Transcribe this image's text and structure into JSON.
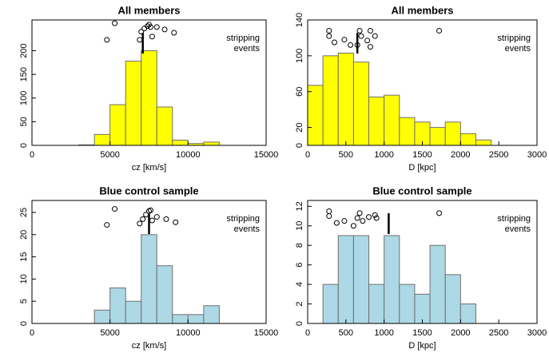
{
  "chart_data": [
    {
      "type": "histogram",
      "title": "All members",
      "x_label": "cz [km/s]",
      "bins": [
        3000,
        4000,
        5000,
        6000,
        7000,
        8000,
        9000,
        10000,
        11000,
        12000
      ],
      "values": [
        1,
        23,
        86,
        178,
        200,
        81,
        11,
        4,
        7
      ],
      "color": "#ffff00",
      "xlim": [
        0,
        15000
      ],
      "xticks": [
        0,
        5000,
        10000,
        15000
      ],
      "ylim": [
        0,
        265
      ],
      "yticks": [
        0,
        50,
        100,
        150,
        200
      ],
      "events": {
        "x": [
          4800,
          5300,
          6900,
          7000,
          7200,
          7400,
          7500,
          7600,
          7700,
          8000,
          8500,
          9100
        ],
        "y": [
          223,
          258,
          223,
          240,
          247,
          252,
          255,
          250,
          230,
          250,
          245,
          238
        ]
      },
      "median": 7100,
      "annotation": [
        "stripping",
        "events"
      ]
    },
    {
      "type": "histogram",
      "title": "All members",
      "x_label": "D [kpc]",
      "bins": [
        0,
        200,
        400,
        600,
        800,
        1000,
        1200,
        1400,
        1600,
        1800,
        2000,
        2200,
        2400
      ],
      "values": [
        67,
        100,
        103,
        93,
        54,
        56,
        31,
        26,
        20,
        26,
        13,
        6
      ],
      "color": "#ffff00",
      "xlim": [
        0,
        3000
      ],
      "xticks": [
        0,
        500,
        1000,
        1500,
        2000,
        2500,
        3000
      ],
      "ylim": [
        0,
        140
      ],
      "yticks": [
        0,
        20,
        60,
        100,
        140
      ],
      "events": {
        "x": [
          280,
          280,
          350,
          480,
          560,
          650,
          680,
          700,
          780,
          820,
          820,
          880,
          1720
        ],
        "y": [
          128,
          122,
          115,
          118,
          112,
          112,
          128,
          122,
          117,
          110,
          128,
          122,
          128
        ]
      },
      "median": 650,
      "annotation": [
        "stripping",
        "events"
      ]
    },
    {
      "type": "histogram",
      "title": "Blue control sample",
      "x_label": "cz [km/s]",
      "bins": [
        4000,
        5000,
        6000,
        7000,
        8000,
        9000,
        10000,
        11000,
        12000
      ],
      "values": [
        3,
        8,
        5,
        20,
        13,
        2,
        2,
        4
      ],
      "color": "#add8e6",
      "xlim": [
        0,
        15000
      ],
      "xticks": [
        0,
        5000,
        10000,
        15000
      ],
      "ylim": [
        0,
        27.7
      ],
      "yticks": [
        0,
        5,
        10,
        15,
        20,
        25
      ],
      "events": {
        "x": [
          4800,
          5300,
          6900,
          7100,
          7300,
          7500,
          7600,
          7700,
          8000,
          8600,
          9200
        ],
        "y": [
          22.2,
          25.8,
          22.5,
          23.5,
          24.5,
          25.3,
          25.5,
          23.2,
          24,
          23.5,
          22.8
        ]
      },
      "median": 7500,
      "annotation": [
        "stripping",
        "events"
      ]
    },
    {
      "type": "histogram",
      "title": "Blue control sample",
      "x_label": "D [kpc]",
      "bins": [
        200,
        400,
        600,
        800,
        1000,
        1200,
        1400,
        1600,
        1800,
        2000,
        2200
      ],
      "values": [
        4,
        9,
        9,
        4,
        9,
        4,
        3,
        8,
        5,
        2
      ],
      "color": "#add8e6",
      "xlim": [
        0,
        3000
      ],
      "xticks": [
        0,
        500,
        1000,
        1500,
        2000,
        2500,
        3000
      ],
      "ylim": [
        0,
        12.6
      ],
      "yticks": [
        0,
        2,
        4,
        6,
        8,
        10,
        12
      ],
      "events": {
        "x": [
          280,
          280,
          380,
          480,
          600,
          650,
          680,
          720,
          800,
          880,
          900,
          1720
        ],
        "y": [
          11.5,
          11,
          10.3,
          10.5,
          10,
          10.8,
          11.3,
          10.5,
          10.9,
          11.1,
          10.8,
          11.3
        ]
      },
      "median": 1060,
      "annotation": [
        "stripping",
        "events"
      ]
    }
  ]
}
